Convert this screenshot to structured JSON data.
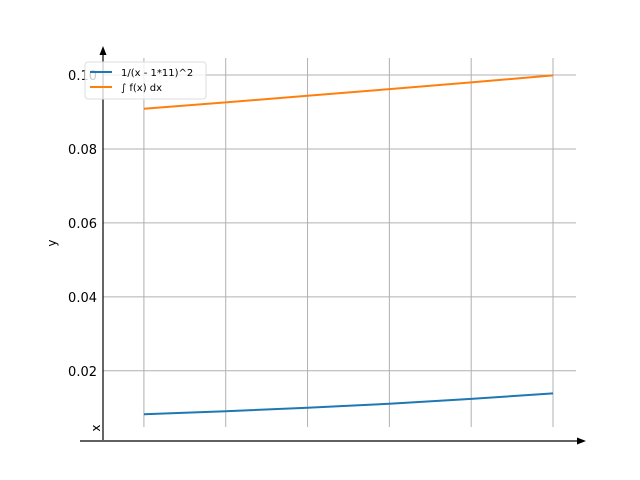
{
  "chart_data": {
    "type": "line",
    "title": "",
    "xlabel": "x",
    "ylabel": "y",
    "xlim": [
      -11.0,
      0.0
    ],
    "ylim": [
      0.0048,
      0.1046
    ],
    "grid": true,
    "legend_position": "top-left",
    "y_ticks": [
      0.02,
      0.04,
      0.06,
      0.08,
      0.1
    ],
    "y_tick_labels": [
      "0.02",
      "0.04",
      "0.06",
      "0.08",
      "0.10"
    ],
    "x_ticks": [
      -10,
      -8,
      -6,
      -4,
      -2,
      0
    ],
    "x_tick_labels": [],
    "series": [
      {
        "name": "1/(x - 1*11)^2",
        "color": "#1f77b4",
        "x": [
          -10,
          -8,
          -6,
          -4,
          -2,
          0
        ],
        "y": [
          0.00827,
          0.00907,
          0.01,
          0.0111,
          0.0124,
          0.0139
        ]
      },
      {
        "name": "∫ f(x) dx",
        "color": "#ff7f0e",
        "x": [
          -10,
          -8,
          -6,
          -4,
          -2,
          0
        ],
        "y": [
          0.0909,
          0.0926,
          0.0944,
          0.0962,
          0.098,
          0.0999
        ]
      }
    ]
  }
}
